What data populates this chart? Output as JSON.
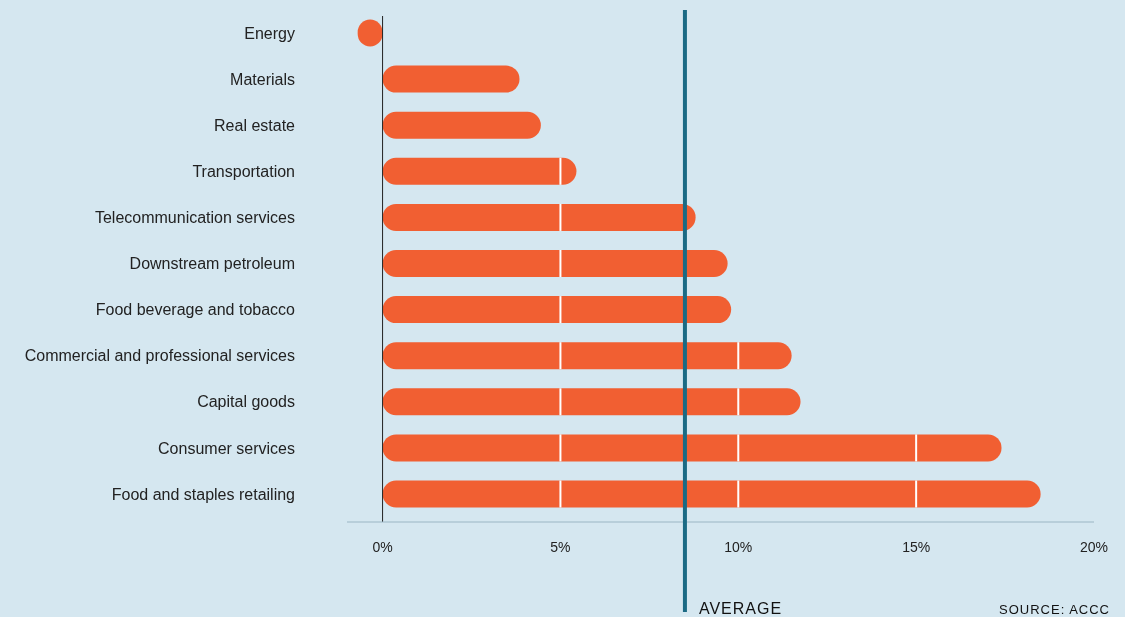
{
  "chart_data": {
    "type": "bar",
    "orientation": "horizontal",
    "categories": [
      "Energy",
      "Materials",
      "Real estate",
      "Transportation",
      "Telecommunication services",
      "Downstream petroleum",
      "Food beverage and tobacco",
      "Commercial and professional services",
      "Capital goods",
      "Consumer services",
      "Food and staples retailing"
    ],
    "values": [
      -0.7,
      3.85,
      4.45,
      5.45,
      8.8,
      9.7,
      9.8,
      11.5,
      11.75,
      17.4,
      18.5
    ],
    "color": "#f15f32",
    "xlim": [
      -1,
      20
    ],
    "xticks": [
      {
        "value": 0,
        "label": "0%"
      },
      {
        "value": 5,
        "label": "5%"
      },
      {
        "value": 10,
        "label": "10%"
      },
      {
        "value": 15,
        "label": "15%"
      },
      {
        "value": 20,
        "label": "20%"
      }
    ],
    "ref_lines": [
      {
        "axis": "x",
        "value": 8.5,
        "label": "AVERAGE",
        "color": "#1b6a84"
      }
    ],
    "annotations": [
      "SOURCE: ACCC"
    ]
  }
}
